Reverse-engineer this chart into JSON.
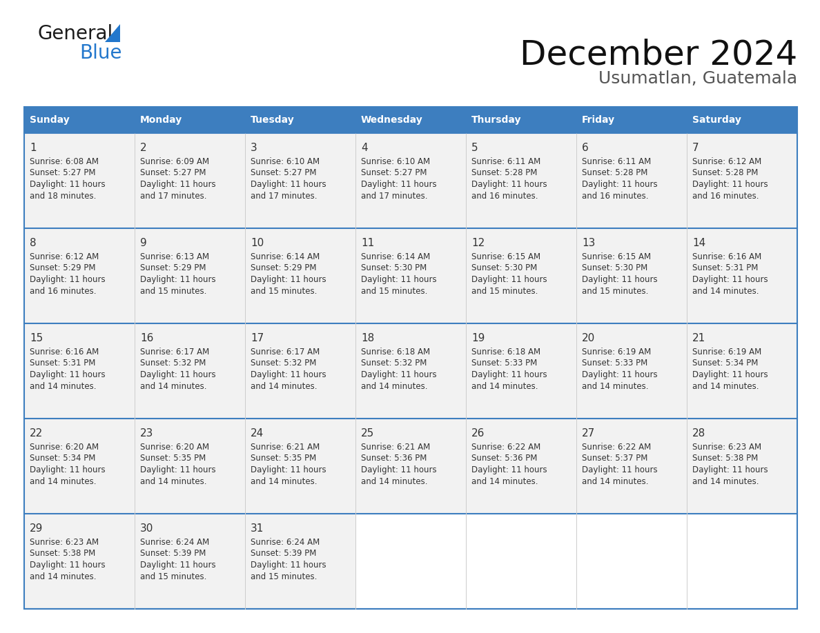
{
  "title": "December 2024",
  "subtitle": "Usumatlan, Guatemala",
  "header_bg": "#3d7ebf",
  "header_text_color": "#ffffff",
  "cell_bg": "#f2f2f2",
  "empty_cell_bg": "#ffffff",
  "border_color": "#3d7ebf",
  "divider_color": "#3d7ebf",
  "cell_divider_color": "#cccccc",
  "text_color": "#333333",
  "day_headers": [
    "Sunday",
    "Monday",
    "Tuesday",
    "Wednesday",
    "Thursday",
    "Friday",
    "Saturday"
  ],
  "weeks": [
    [
      {
        "day": 1,
        "sunrise": "6:08 AM",
        "sunset": "5:27 PM",
        "daylight_line1": "Daylight: 11 hours",
        "daylight_line2": "and 18 minutes."
      },
      {
        "day": 2,
        "sunrise": "6:09 AM",
        "sunset": "5:27 PM",
        "daylight_line1": "Daylight: 11 hours",
        "daylight_line2": "and 17 minutes."
      },
      {
        "day": 3,
        "sunrise": "6:10 AM",
        "sunset": "5:27 PM",
        "daylight_line1": "Daylight: 11 hours",
        "daylight_line2": "and 17 minutes."
      },
      {
        "day": 4,
        "sunrise": "6:10 AM",
        "sunset": "5:27 PM",
        "daylight_line1": "Daylight: 11 hours",
        "daylight_line2": "and 17 minutes."
      },
      {
        "day": 5,
        "sunrise": "6:11 AM",
        "sunset": "5:28 PM",
        "daylight_line1": "Daylight: 11 hours",
        "daylight_line2": "and 16 minutes."
      },
      {
        "day": 6,
        "sunrise": "6:11 AM",
        "sunset": "5:28 PM",
        "daylight_line1": "Daylight: 11 hours",
        "daylight_line2": "and 16 minutes."
      },
      {
        "day": 7,
        "sunrise": "6:12 AM",
        "sunset": "5:28 PM",
        "daylight_line1": "Daylight: 11 hours",
        "daylight_line2": "and 16 minutes."
      }
    ],
    [
      {
        "day": 8,
        "sunrise": "6:12 AM",
        "sunset": "5:29 PM",
        "daylight_line1": "Daylight: 11 hours",
        "daylight_line2": "and 16 minutes."
      },
      {
        "day": 9,
        "sunrise": "6:13 AM",
        "sunset": "5:29 PM",
        "daylight_line1": "Daylight: 11 hours",
        "daylight_line2": "and 15 minutes."
      },
      {
        "day": 10,
        "sunrise": "6:14 AM",
        "sunset": "5:29 PM",
        "daylight_line1": "Daylight: 11 hours",
        "daylight_line2": "and 15 minutes."
      },
      {
        "day": 11,
        "sunrise": "6:14 AM",
        "sunset": "5:30 PM",
        "daylight_line1": "Daylight: 11 hours",
        "daylight_line2": "and 15 minutes."
      },
      {
        "day": 12,
        "sunrise": "6:15 AM",
        "sunset": "5:30 PM",
        "daylight_line1": "Daylight: 11 hours",
        "daylight_line2": "and 15 minutes."
      },
      {
        "day": 13,
        "sunrise": "6:15 AM",
        "sunset": "5:30 PM",
        "daylight_line1": "Daylight: 11 hours",
        "daylight_line2": "and 15 minutes."
      },
      {
        "day": 14,
        "sunrise": "6:16 AM",
        "sunset": "5:31 PM",
        "daylight_line1": "Daylight: 11 hours",
        "daylight_line2": "and 14 minutes."
      }
    ],
    [
      {
        "day": 15,
        "sunrise": "6:16 AM",
        "sunset": "5:31 PM",
        "daylight_line1": "Daylight: 11 hours",
        "daylight_line2": "and 14 minutes."
      },
      {
        "day": 16,
        "sunrise": "6:17 AM",
        "sunset": "5:32 PM",
        "daylight_line1": "Daylight: 11 hours",
        "daylight_line2": "and 14 minutes."
      },
      {
        "day": 17,
        "sunrise": "6:17 AM",
        "sunset": "5:32 PM",
        "daylight_line1": "Daylight: 11 hours",
        "daylight_line2": "and 14 minutes."
      },
      {
        "day": 18,
        "sunrise": "6:18 AM",
        "sunset": "5:32 PM",
        "daylight_line1": "Daylight: 11 hours",
        "daylight_line2": "and 14 minutes."
      },
      {
        "day": 19,
        "sunrise": "6:18 AM",
        "sunset": "5:33 PM",
        "daylight_line1": "Daylight: 11 hours",
        "daylight_line2": "and 14 minutes."
      },
      {
        "day": 20,
        "sunrise": "6:19 AM",
        "sunset": "5:33 PM",
        "daylight_line1": "Daylight: 11 hours",
        "daylight_line2": "and 14 minutes."
      },
      {
        "day": 21,
        "sunrise": "6:19 AM",
        "sunset": "5:34 PM",
        "daylight_line1": "Daylight: 11 hours",
        "daylight_line2": "and 14 minutes."
      }
    ],
    [
      {
        "day": 22,
        "sunrise": "6:20 AM",
        "sunset": "5:34 PM",
        "daylight_line1": "Daylight: 11 hours",
        "daylight_line2": "and 14 minutes."
      },
      {
        "day": 23,
        "sunrise": "6:20 AM",
        "sunset": "5:35 PM",
        "daylight_line1": "Daylight: 11 hours",
        "daylight_line2": "and 14 minutes."
      },
      {
        "day": 24,
        "sunrise": "6:21 AM",
        "sunset": "5:35 PM",
        "daylight_line1": "Daylight: 11 hours",
        "daylight_line2": "and 14 minutes."
      },
      {
        "day": 25,
        "sunrise": "6:21 AM",
        "sunset": "5:36 PM",
        "daylight_line1": "Daylight: 11 hours",
        "daylight_line2": "and 14 minutes."
      },
      {
        "day": 26,
        "sunrise": "6:22 AM",
        "sunset": "5:36 PM",
        "daylight_line1": "Daylight: 11 hours",
        "daylight_line2": "and 14 minutes."
      },
      {
        "day": 27,
        "sunrise": "6:22 AM",
        "sunset": "5:37 PM",
        "daylight_line1": "Daylight: 11 hours",
        "daylight_line2": "and 14 minutes."
      },
      {
        "day": 28,
        "sunrise": "6:23 AM",
        "sunset": "5:38 PM",
        "daylight_line1": "Daylight: 11 hours",
        "daylight_line2": "and 14 minutes."
      }
    ],
    [
      {
        "day": 29,
        "sunrise": "6:23 AM",
        "sunset": "5:38 PM",
        "daylight_line1": "Daylight: 11 hours",
        "daylight_line2": "and 14 minutes."
      },
      {
        "day": 30,
        "sunrise": "6:24 AM",
        "sunset": "5:39 PM",
        "daylight_line1": "Daylight: 11 hours",
        "daylight_line2": "and 15 minutes."
      },
      {
        "day": 31,
        "sunrise": "6:24 AM",
        "sunset": "5:39 PM",
        "daylight_line1": "Daylight: 11 hours",
        "daylight_line2": "and 15 minutes."
      },
      null,
      null,
      null,
      null
    ]
  ],
  "logo_text1": "General",
  "logo_text2": "Blue",
  "logo_color1": "#1a1a1a",
  "logo_color2": "#2277cc"
}
